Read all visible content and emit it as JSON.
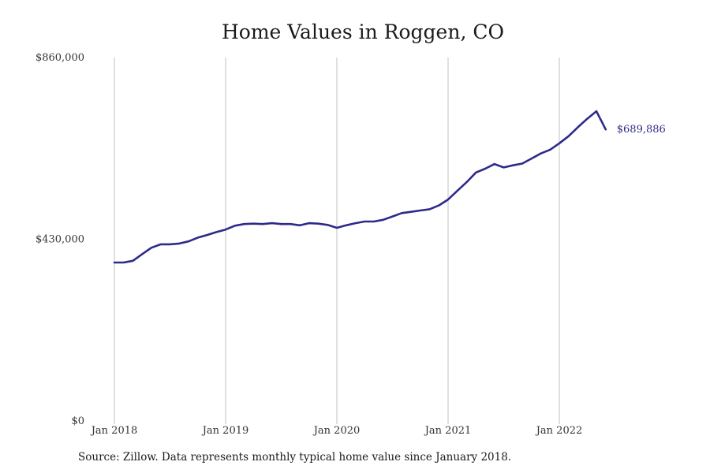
{
  "chart_data": {
    "type": "line",
    "title": "Home Values in Roggen, CO",
    "xlabel": "",
    "ylabel": "",
    "grid": "vertical-x-only",
    "y_ticks": [
      {
        "value": 0,
        "label": "$0"
      },
      {
        "value": 430000,
        "label": "$430,000"
      },
      {
        "value": 860000,
        "label": "$860,000"
      }
    ],
    "ylim": [
      0,
      860000
    ],
    "x_ticks": [
      {
        "value": "2018-01",
        "label": "Jan 2018"
      },
      {
        "value": "2019-01",
        "label": "Jan 2019"
      },
      {
        "value": "2020-01",
        "label": "Jan 2020"
      },
      {
        "value": "2021-01",
        "label": "Jan 2021"
      },
      {
        "value": "2022-01",
        "label": "Jan 2022"
      }
    ],
    "xlim": [
      "2018-01",
      "2022-06"
    ],
    "line_color": "#2e2a8a",
    "grid_color": "#c0c0c0",
    "end_label": "$689,886",
    "series": [
      {
        "x": [
          "2018-01",
          "2018-02",
          "2018-03",
          "2018-04",
          "2018-05",
          "2018-06",
          "2018-07",
          "2018-08",
          "2018-09",
          "2018-10",
          "2018-11",
          "2018-12",
          "2019-01",
          "2019-02",
          "2019-03",
          "2019-04",
          "2019-05",
          "2019-06",
          "2019-07",
          "2019-08",
          "2019-09",
          "2019-10",
          "2019-11",
          "2019-12",
          "2020-01",
          "2020-02",
          "2020-03",
          "2020-04",
          "2020-05",
          "2020-06",
          "2020-07",
          "2020-08",
          "2020-09",
          "2020-10",
          "2020-11",
          "2020-12",
          "2021-01",
          "2021-02",
          "2021-03",
          "2021-04",
          "2021-05",
          "2021-06",
          "2021-07",
          "2021-08",
          "2021-09",
          "2021-10",
          "2021-11",
          "2021-12",
          "2022-01",
          "2022-02",
          "2022-03",
          "2022-04",
          "2022-05",
          "2022-06"
        ],
        "values": [
          375000,
          375000,
          379000,
          395000,
          410000,
          418000,
          418000,
          420000,
          425000,
          434000,
          440000,
          447000,
          453000,
          462000,
          466000,
          467000,
          466000,
          468000,
          466000,
          466000,
          463000,
          468000,
          467000,
          464000,
          457000,
          463000,
          468000,
          472000,
          472000,
          476000,
          484000,
          492000,
          495000,
          498000,
          501000,
          510000,
          524000,
          545000,
          565000,
          588000,
          597000,
          608000,
          600000,
          605000,
          609000,
          621000,
          633000,
          642000,
          657000,
          674000,
          695000,
          715000,
          733000,
          689886
        ],
        "note_last": "last point labelled"
      }
    ]
  },
  "source_note": "Source: Zillow. Data represents monthly typical home value since January 2018."
}
